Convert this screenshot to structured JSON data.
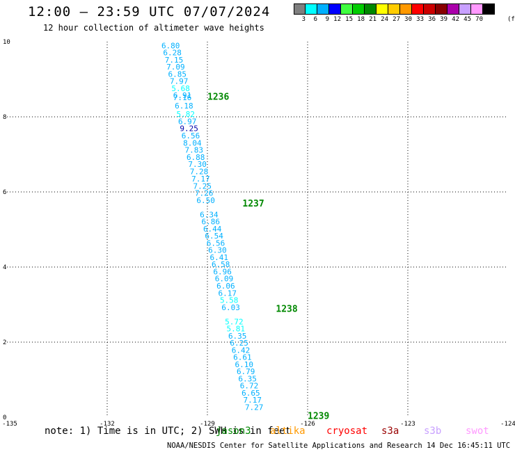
{
  "header": {
    "title": "12:00 – 23:59 UTC 07/07/2024",
    "subtitle": "12 hour collection of altimeter wave heights"
  },
  "colorbar": {
    "unit": "(ft)",
    "entries": [
      {
        "label": "3",
        "color": "#7f7f7f"
      },
      {
        "label": "6",
        "color": "#00ffff"
      },
      {
        "label": "9",
        "color": "#00b0ff"
      },
      {
        "label": "12",
        "color": "#0000ff"
      },
      {
        "label": "15",
        "color": "#40ff40"
      },
      {
        "label": "18",
        "color": "#00cc00"
      },
      {
        "label": "21",
        "color": "#008800"
      },
      {
        "label": "24",
        "color": "#ffff00"
      },
      {
        "label": "27",
        "color": "#ffcc00"
      },
      {
        "label": "30",
        "color": "#ff9900"
      },
      {
        "label": "33",
        "color": "#ff0000"
      },
      {
        "label": "36",
        "color": "#cc0000"
      },
      {
        "label": "39",
        "color": "#880000"
      },
      {
        "label": "42",
        "color": "#aa00aa"
      },
      {
        "label": "45",
        "color": "#c8a0ff"
      },
      {
        "label": "70",
        "color": "#ff99ff"
      },
      {
        "label": "",
        "color": "#000000"
      }
    ]
  },
  "footer": {
    "note": "note: 1) Time is in UTC; 2) SWH is in feet",
    "legend": [
      {
        "label": "jason3",
        "color": "#008800"
      },
      {
        "label": "altika",
        "color": "#ff9900"
      },
      {
        "label": "cryosat",
        "color": "#ff0000"
      },
      {
        "label": "s3a",
        "color": "#990000"
      },
      {
        "label": "s3b",
        "color": "#c8a0ff"
      },
      {
        "label": "swot",
        "color": "#ff99ff"
      }
    ],
    "credit": "NOAA/NESDIS Center for Satellite Applications and Research   14 Dec 16:45:11 UTC 2024"
  },
  "chart_data": {
    "type": "scatter",
    "xlim": [
      -135,
      -124
    ],
    "ylim": [
      0,
      10
    ],
    "x_ticks": [
      "-135",
      "-132",
      "-129",
      "-126",
      "-123",
      "-124"
    ],
    "y_ticks": [
      "0",
      "2",
      "4",
      "6",
      "8",
      "10"
    ],
    "grid": true,
    "series": [
      {
        "name": "jason3",
        "points": [
          {
            "lon": -130.1,
            "lat": 9.9,
            "v": "6.80",
            "c": "#00b0ff"
          },
          {
            "lon": -130.05,
            "lat": 9.71,
            "v": "6.28",
            "c": "#00b0ff"
          },
          {
            "lon": -130.0,
            "lat": 9.52,
            "v": "7.15",
            "c": "#00b0ff"
          },
          {
            "lon": -129.95,
            "lat": 9.33,
            "v": "7.09",
            "c": "#00b0ff"
          },
          {
            "lon": -129.9,
            "lat": 9.14,
            "v": "6.85",
            "c": "#00b0ff"
          },
          {
            "lon": -129.85,
            "lat": 8.95,
            "v": "7.97",
            "c": "#00b0ff"
          },
          {
            "lon": -129.8,
            "lat": 8.76,
            "v": "5.68",
            "c": "#00ffff"
          },
          {
            "lon": -129.75,
            "lat": 8.57,
            "v": "6.91",
            "c": "#00b0ff"
          },
          {
            "lon": -129.75,
            "lat": 8.52,
            "v": "7.16",
            "c": "#00b0ff"
          },
          {
            "lon": -129.7,
            "lat": 8.3,
            "v": "6.18",
            "c": "#00b0ff"
          },
          {
            "lon": -129.65,
            "lat": 8.07,
            "v": "5.82",
            "c": "#00ffff"
          },
          {
            "lon": -129.6,
            "lat": 7.88,
            "v": "6.97",
            "c": "#00b0ff"
          },
          {
            "lon": -129.55,
            "lat": 7.69,
            "v": "9.25",
            "c": "#0000aa"
          },
          {
            "lon": -129.5,
            "lat": 7.5,
            "v": "6.56",
            "c": "#00b0ff"
          },
          {
            "lon": -129.45,
            "lat": 7.31,
            "v": "8.04",
            "c": "#00b0ff"
          },
          {
            "lon": -129.4,
            "lat": 7.12,
            "v": "7.83",
            "c": "#00b0ff"
          },
          {
            "lon": -129.35,
            "lat": 6.93,
            "v": "6.88",
            "c": "#00b0ff"
          },
          {
            "lon": -129.3,
            "lat": 6.74,
            "v": "7.30",
            "c": "#00b0ff"
          },
          {
            "lon": -129.25,
            "lat": 6.55,
            "v": "7.28",
            "c": "#00b0ff"
          },
          {
            "lon": -129.2,
            "lat": 6.35,
            "v": "7.17",
            "c": "#00b0ff"
          },
          {
            "lon": -129.15,
            "lat": 6.16,
            "v": "7.25",
            "c": "#00b0ff"
          },
          {
            "lon": -129.1,
            "lat": 5.97,
            "v": "7.26",
            "c": "#00b0ff"
          },
          {
            "lon": -129.05,
            "lat": 5.78,
            "v": "6.50",
            "c": "#00b0ff"
          },
          {
            "lon": -128.95,
            "lat": 5.4,
            "v": "6.34",
            "c": "#00b0ff"
          },
          {
            "lon": -128.9,
            "lat": 5.21,
            "v": "6.86",
            "c": "#00b0ff"
          },
          {
            "lon": -128.85,
            "lat": 5.02,
            "v": "6.44",
            "c": "#00b0ff"
          },
          {
            "lon": -128.8,
            "lat": 4.83,
            "v": "6.54",
            "c": "#00b0ff"
          },
          {
            "lon": -128.75,
            "lat": 4.64,
            "v": "6.56",
            "c": "#00b0ff"
          },
          {
            "lon": -128.7,
            "lat": 4.45,
            "v": "6.30",
            "c": "#00b0ff"
          },
          {
            "lon": -128.65,
            "lat": 4.26,
            "v": "6.41",
            "c": "#00b0ff"
          },
          {
            "lon": -128.6,
            "lat": 4.07,
            "v": "6.58",
            "c": "#00b0ff"
          },
          {
            "lon": -128.55,
            "lat": 3.88,
            "v": "6.96",
            "c": "#00b0ff"
          },
          {
            "lon": -128.5,
            "lat": 3.69,
            "v": "6.09",
            "c": "#00b0ff"
          },
          {
            "lon": -128.45,
            "lat": 3.5,
            "v": "6.06",
            "c": "#00b0ff"
          },
          {
            "lon": -128.4,
            "lat": 3.31,
            "v": "6.17",
            "c": "#00b0ff"
          },
          {
            "lon": -128.35,
            "lat": 3.12,
            "v": "5.58",
            "c": "#00ffff"
          },
          {
            "lon": -128.3,
            "lat": 2.93,
            "v": "6.03",
            "c": "#00b0ff"
          },
          {
            "lon": -128.2,
            "lat": 2.55,
            "v": "5.72",
            "c": "#00ffff"
          },
          {
            "lon": -128.15,
            "lat": 2.36,
            "v": "5.81",
            "c": "#00ffff"
          },
          {
            "lon": -128.1,
            "lat": 2.17,
            "v": "6.35",
            "c": "#00b0ff"
          },
          {
            "lon": -128.05,
            "lat": 1.98,
            "v": "6.25",
            "c": "#00b0ff"
          },
          {
            "lon": -128.0,
            "lat": 1.79,
            "v": "6.42",
            "c": "#00b0ff"
          },
          {
            "lon": -127.95,
            "lat": 1.6,
            "v": "6.61",
            "c": "#00b0ff"
          },
          {
            "lon": -127.9,
            "lat": 1.41,
            "v": "6.10",
            "c": "#00b0ff"
          },
          {
            "lon": -127.85,
            "lat": 1.22,
            "v": "6.79",
            "c": "#00b0ff"
          },
          {
            "lon": -127.8,
            "lat": 1.03,
            "v": "6.35",
            "c": "#00b0ff"
          },
          {
            "lon": -127.75,
            "lat": 0.84,
            "v": "6.72",
            "c": "#00b0ff"
          },
          {
            "lon": -127.7,
            "lat": 0.65,
            "v": "6.65",
            "c": "#00b0ff"
          },
          {
            "lon": -127.65,
            "lat": 0.46,
            "v": "7.17",
            "c": "#00b0ff"
          },
          {
            "lon": -127.6,
            "lat": 0.27,
            "v": "7.27",
            "c": "#00b0ff"
          }
        ]
      }
    ],
    "time_labels": [
      {
        "lon": -129.0,
        "lat": 8.55,
        "text": "1236",
        "c": "#008800"
      },
      {
        "lon": -127.95,
        "lat": 5.7,
        "text": "1237",
        "c": "#008800"
      },
      {
        "lon": -126.95,
        "lat": 2.9,
        "text": "1238",
        "c": "#008800"
      },
      {
        "lon": -126.0,
        "lat": 0.05,
        "text": "1239",
        "c": "#008800"
      }
    ]
  }
}
